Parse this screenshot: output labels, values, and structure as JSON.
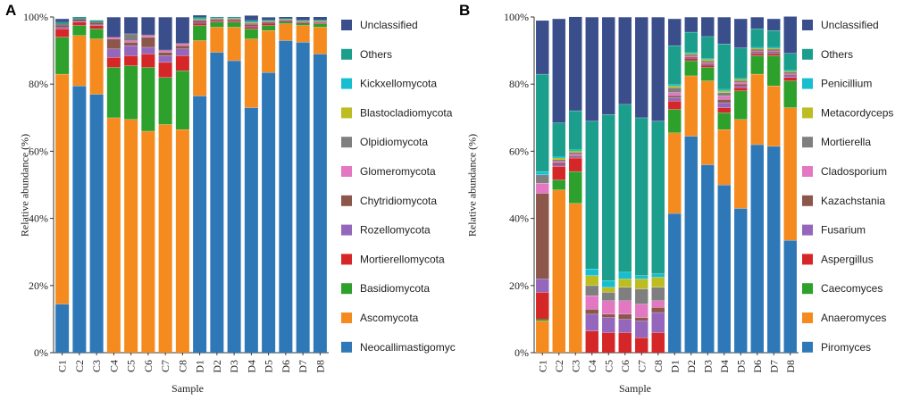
{
  "chart_data": [
    {
      "id": "panel-a",
      "type": "bar",
      "stacked": true,
      "panel_label": "A",
      "xlabel": "Sample",
      "ylabel": "Relative abundance (%)",
      "ylim": [
        0,
        100
      ],
      "yticks": [
        "0%",
        "20%",
        "40%",
        "60%",
        "80%",
        "100%"
      ],
      "categories": [
        "C1",
        "C2",
        "C3",
        "C4",
        "C5",
        "C6",
        "C7",
        "C8",
        "D1",
        "D2",
        "D3",
        "D4",
        "D5",
        "D6",
        "D7",
        "D8"
      ],
      "series": [
        {
          "name": "Neocallimastigomycota",
          "color": "#2f78b8",
          "values": [
            14.5,
            79.5,
            77,
            0,
            0,
            0,
            0,
            0,
            76.5,
            89.5,
            87,
            73,
            83.5,
            93,
            92.5,
            89
          ]
        },
        {
          "name": "Ascomycota",
          "color": "#f58a1f",
          "values": [
            68.5,
            15,
            16.5,
            70,
            69.5,
            66,
            68,
            66.5,
            16.5,
            7.5,
            10,
            20.5,
            12.5,
            5,
            5,
            8
          ]
        },
        {
          "name": "Basidiomycota",
          "color": "#2ea02c",
          "values": [
            11,
            3,
            3,
            15,
            16,
            19,
            14,
            17.5,
            4.5,
            1.5,
            1.5,
            3,
            1.5,
            0.5,
            0.5,
            1
          ]
        },
        {
          "name": "Mortierellomycota",
          "color": "#d62728",
          "values": [
            2.5,
            1,
            1,
            3,
            3,
            4,
            4.5,
            4.5,
            0.5,
            0.3,
            0.3,
            0.5,
            0.5,
            0.2,
            0.2,
            0.2
          ]
        },
        {
          "name": "Rozellomycota",
          "color": "#9467bd",
          "values": [
            0.5,
            0.3,
            0.3,
            2.5,
            3,
            2,
            2,
            2,
            0.3,
            0.2,
            0.2,
            0.3,
            0.2,
            0.1,
            0.1,
            0.1
          ]
        },
        {
          "name": "Chytridiomycota",
          "color": "#8c564b",
          "values": [
            0.5,
            0.5,
            0.5,
            3,
            1,
            3,
            1,
            1,
            0.5,
            0.3,
            0.3,
            0.5,
            0.3,
            0.2,
            0.2,
            0.2
          ]
        },
        {
          "name": "Glomeromycota",
          "color": "#e377c2",
          "values": [
            0,
            0,
            0,
            0.5,
            0.5,
            0.5,
            0.5,
            0.5,
            0.2,
            0.1,
            0.1,
            0.2,
            0.1,
            0.1,
            0.1,
            0.1
          ]
        },
        {
          "name": "Olpidiomycota",
          "color": "#7f7f7f",
          "values": [
            0.5,
            0.2,
            0.2,
            0,
            2,
            0.2,
            0.2,
            0.2,
            0.2,
            0.1,
            0.1,
            0.2,
            0.1,
            0.1,
            0.1,
            0.1
          ]
        },
        {
          "name": "Blastocladiomycota",
          "color": "#bcbd22",
          "values": [
            0,
            0,
            0,
            0,
            0,
            0,
            0,
            0,
            0.2,
            0.1,
            0.1,
            0.2,
            0.1,
            0.1,
            0.1,
            0.1
          ]
        },
        {
          "name": "Kickxellomycota",
          "color": "#17becf",
          "values": [
            0,
            0,
            0,
            0,
            0,
            0,
            0,
            0,
            0.2,
            0.1,
            0.1,
            0.2,
            0.1,
            0.1,
            0.1,
            0.1
          ]
        },
        {
          "name": "Others",
          "color": "#1c9e8c",
          "values": [
            0.5,
            0.5,
            0.5,
            0,
            0,
            0,
            0,
            0,
            0.4,
            0.3,
            0.3,
            0.4,
            0.3,
            0.2,
            0.2,
            0.2
          ]
        },
        {
          "name": "Unclassified",
          "color": "#3b4e8c",
          "values": [
            1,
            0,
            0,
            6,
            5,
            5.3,
            9.8,
            7.8,
            0.5,
            0,
            0,
            1.5,
            0.7,
            0.4,
            0.9,
            0.9
          ]
        }
      ]
    },
    {
      "id": "panel-b",
      "type": "bar",
      "stacked": true,
      "panel_label": "B",
      "xlabel": "Sample",
      "ylabel": "Relative abundance (%)",
      "ylim": [
        0,
        100
      ],
      "yticks": [
        "0%",
        "20%",
        "40%",
        "60%",
        "80%",
        "100%"
      ],
      "categories": [
        "C1",
        "C2",
        "C3",
        "C4",
        "C5",
        "C6",
        "C7",
        "C8",
        "D1",
        "D2",
        "D3",
        "D4",
        "D5",
        "D6",
        "D7",
        "D8"
      ],
      "series": [
        {
          "name": "Piromyces",
          "color": "#2f78b8",
          "values": [
            0,
            0,
            0,
            0,
            0,
            0,
            0,
            0,
            41.5,
            64.5,
            56,
            50,
            43,
            62,
            61.5,
            33.5
          ]
        },
        {
          "name": "Anaeromyces",
          "color": "#f58a1f",
          "values": [
            9.5,
            48.5,
            44.5,
            0,
            0,
            0,
            0,
            0,
            24,
            18,
            25,
            16.5,
            26.5,
            21,
            18,
            39.5
          ]
        },
        {
          "name": "Caecomyces",
          "color": "#2ea02c",
          "values": [
            0.5,
            3,
            9.5,
            0,
            0,
            0,
            0,
            0,
            7,
            4.5,
            4,
            5,
            8.5,
            5.5,
            9,
            8
          ]
        },
        {
          "name": "Aspergillus",
          "color": "#d62728",
          "values": [
            8,
            4,
            4,
            6.5,
            6,
            6,
            4.5,
            6,
            2.5,
            0.5,
            0.5,
            1.5,
            1,
            0.5,
            0.5,
            1
          ]
        },
        {
          "name": "Fusarium",
          "color": "#9467bd",
          "values": [
            4,
            0.5,
            0.3,
            5,
            4.5,
            4,
            5,
            6,
            1,
            0.3,
            0.3,
            1.5,
            0.5,
            0.3,
            0.3,
            0.5
          ]
        },
        {
          "name": "Kazachstania",
          "color": "#8c564b",
          "values": [
            25.5,
            0.5,
            0.3,
            1.5,
            1,
            1.5,
            1,
            1.5,
            0.5,
            0.3,
            0.3,
            1,
            0.5,
            0.3,
            0.3,
            0.3
          ]
        },
        {
          "name": "Cladosporium",
          "color": "#e377c2",
          "values": [
            3,
            0.5,
            0.5,
            4,
            4,
            4,
            4,
            2,
            1,
            0.3,
            0.3,
            1,
            0.5,
            0.3,
            0.3,
            0.3
          ]
        },
        {
          "name": "Mortierella",
          "color": "#7f7f7f",
          "values": [
            2.5,
            0.5,
            0.5,
            3,
            2.5,
            4,
            4.5,
            4,
            1.5,
            0.5,
            0.5,
            1,
            0.5,
            0.5,
            0.5,
            0.5
          ]
        },
        {
          "name": "Metacordyceps",
          "color": "#bcbd22",
          "values": [
            0,
            0.5,
            0.5,
            3,
            1.5,
            2.5,
            3,
            3,
            0.5,
            0.3,
            0.5,
            0.5,
            0.5,
            0.3,
            0.3,
            0.3
          ]
        },
        {
          "name": "Penicillium",
          "color": "#17becf",
          "values": [
            1,
            0.5,
            0.5,
            2,
            2,
            2,
            1,
            1,
            0.5,
            0.3,
            0.3,
            0.5,
            0.3,
            0.3,
            0.3,
            0.3
          ]
        },
        {
          "name": "Others",
          "color": "#1c9e8c",
          "values": [
            29,
            10,
            11.5,
            44,
            49.5,
            50,
            47,
            45.5,
            11.5,
            6,
            6.5,
            13.5,
            9,
            5.5,
            5,
            5
          ]
        },
        {
          "name": "Unclassified",
          "color": "#3b4e8c",
          "values": [
            16,
            31,
            28,
            31,
            29,
            26,
            30,
            31,
            8,
            4.5,
            5.8,
            8,
            8.7,
            3.5,
            3.5,
            11
          ]
        }
      ]
    }
  ]
}
